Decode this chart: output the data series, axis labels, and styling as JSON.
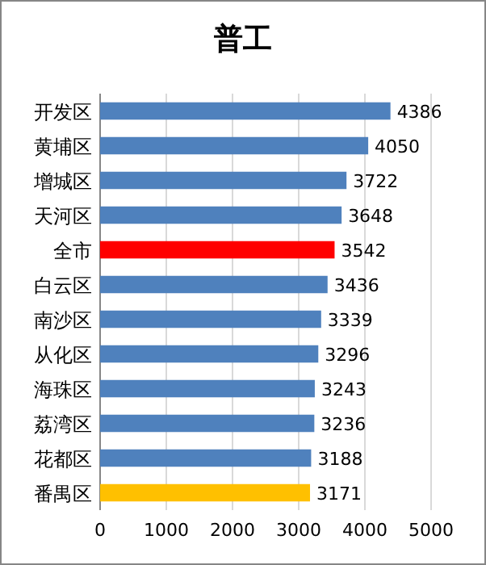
{
  "chart_data": {
    "type": "bar",
    "orientation": "horizontal",
    "title": "普工",
    "categories": [
      "开发区",
      "黄埔区",
      "增城区",
      "天河区",
      "全市",
      "白云区",
      "南沙区",
      "从化区",
      "海珠区",
      "荔湾区",
      "花都区",
      "番禺区"
    ],
    "values": [
      4386,
      4050,
      3722,
      3648,
      3542,
      3436,
      3339,
      3296,
      3243,
      3236,
      3188,
      3171
    ],
    "colors": [
      "#4f81bd",
      "#4f81bd",
      "#4f81bd",
      "#4f81bd",
      "#ff0000",
      "#4f81bd",
      "#4f81bd",
      "#4f81bd",
      "#4f81bd",
      "#4f81bd",
      "#4f81bd",
      "#ffc000"
    ],
    "xlim": [
      0,
      5000
    ],
    "xticks": [
      0,
      1000,
      2000,
      3000,
      4000,
      5000
    ],
    "grid": "x",
    "data_labels": true
  }
}
